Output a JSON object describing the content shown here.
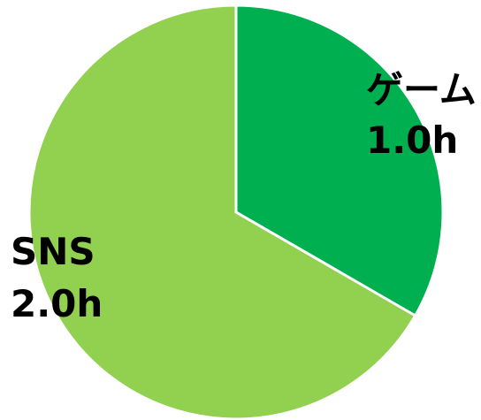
{
  "chart_data": {
    "type": "pie",
    "title": "",
    "unit": "h",
    "slices": [
      {
        "label": "ゲーム",
        "value": 1.0,
        "value_label": "1.0h",
        "color": "#00b050"
      },
      {
        "label": "SNS",
        "value": 2.0,
        "value_label": "2.0h",
        "color": "#92d050"
      }
    ],
    "start_angle_deg": 0,
    "direction": "clockwise",
    "legend": "none"
  }
}
